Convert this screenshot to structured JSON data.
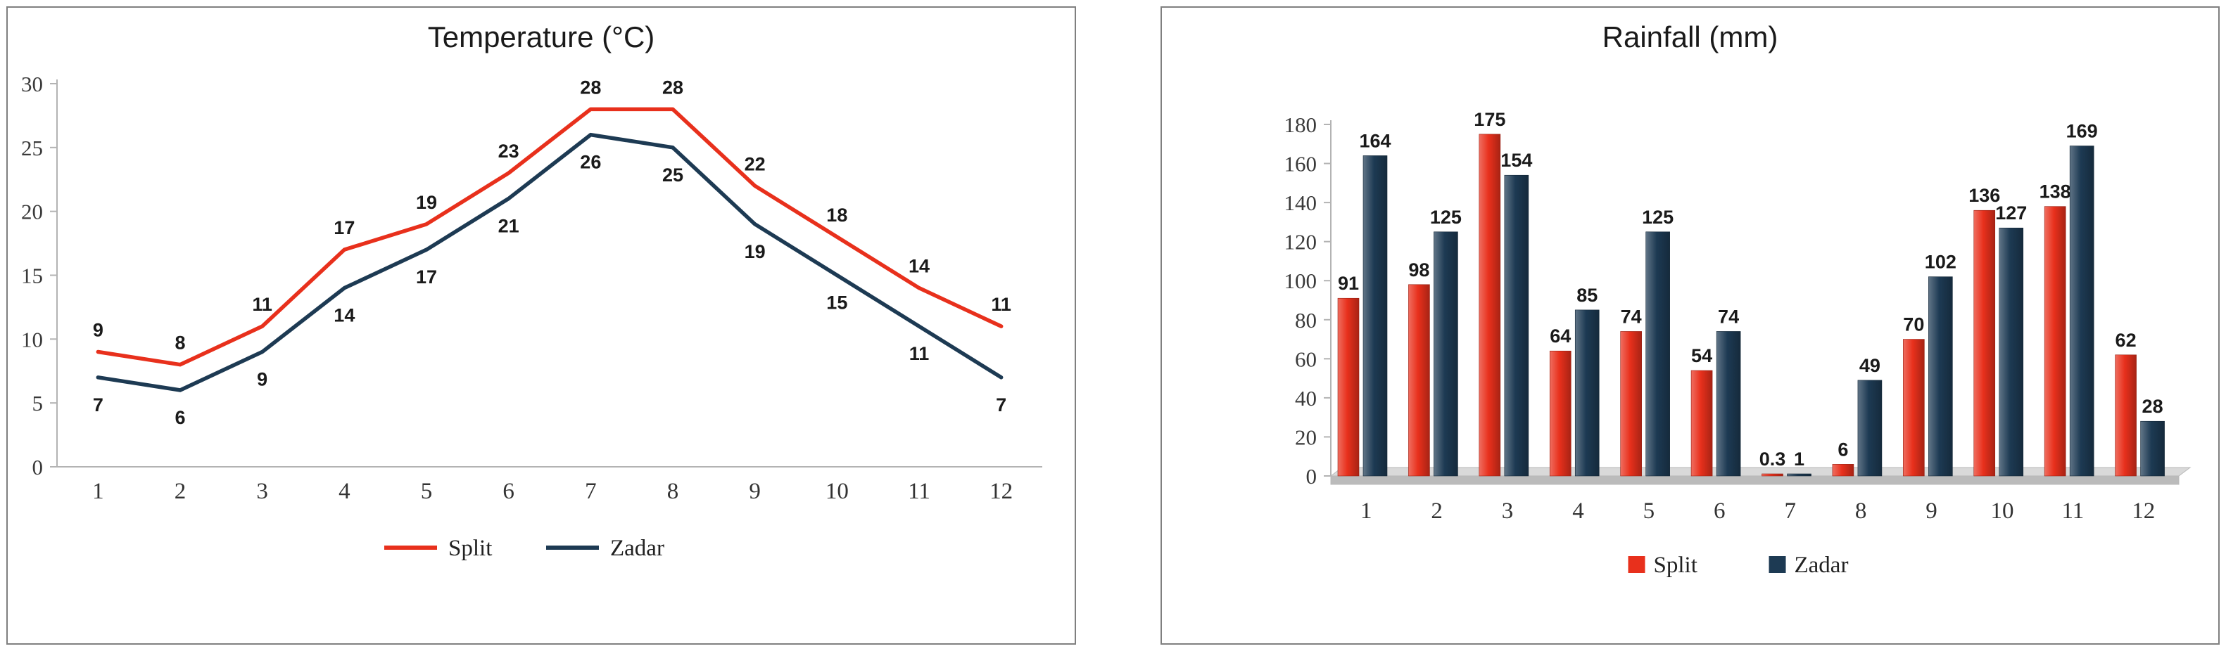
{
  "page": {
    "background": "#ffffff",
    "panel_border_color": "#7f7f7f"
  },
  "chart_data": [
    {
      "type": "line",
      "title": "Temperature (°C)",
      "categories": [
        "1",
        "2",
        "3",
        "4",
        "5",
        "6",
        "7",
        "8",
        "9",
        "10",
        "11",
        "12"
      ],
      "series": [
        {
          "name": "Split",
          "color": "#e8301c",
          "values": [
            9,
            8,
            11,
            17,
            19,
            23,
            28,
            28,
            22,
            18,
            14,
            11
          ],
          "label_position": "above"
        },
        {
          "name": "Zadar",
          "color": "#1d3a53",
          "values": [
            7,
            6,
            9,
            14,
            17,
            21,
            26,
            25,
            19,
            15,
            11,
            7
          ],
          "label_position": "below"
        }
      ],
      "ylim": [
        0,
        30
      ],
      "ytick_step": 5,
      "grid": false,
      "legend_position": "bottom",
      "axis_color": "#b3b3b3",
      "tick_color": "#3a3a3a",
      "label_color": "#1a1a1a"
    },
    {
      "type": "bar",
      "title": "Rainfall (mm)",
      "categories": [
        "1",
        "2",
        "3",
        "4",
        "5",
        "6",
        "7",
        "8",
        "9",
        "10",
        "11",
        "12"
      ],
      "series": [
        {
          "name": "Split",
          "color": "#e8301c",
          "values": [
            91,
            98,
            175,
            64,
            74,
            54,
            0.3,
            6,
            70,
            136,
            138,
            62
          ]
        },
        {
          "name": "Zadar",
          "color": "#1d3a53",
          "values": [
            164,
            125,
            154,
            85,
            125,
            74,
            1,
            49,
            102,
            127,
            169,
            28
          ]
        }
      ],
      "ylim": [
        0,
        180
      ],
      "ytick_step": 20,
      "grid": false,
      "legend_position": "bottom",
      "floor_color": "#d9d9d9",
      "floor_edge_color": "#b8b8b8",
      "axis_color": "#b3b3b3",
      "tick_color": "#3a3a3a",
      "label_color": "#1a1a1a"
    }
  ]
}
